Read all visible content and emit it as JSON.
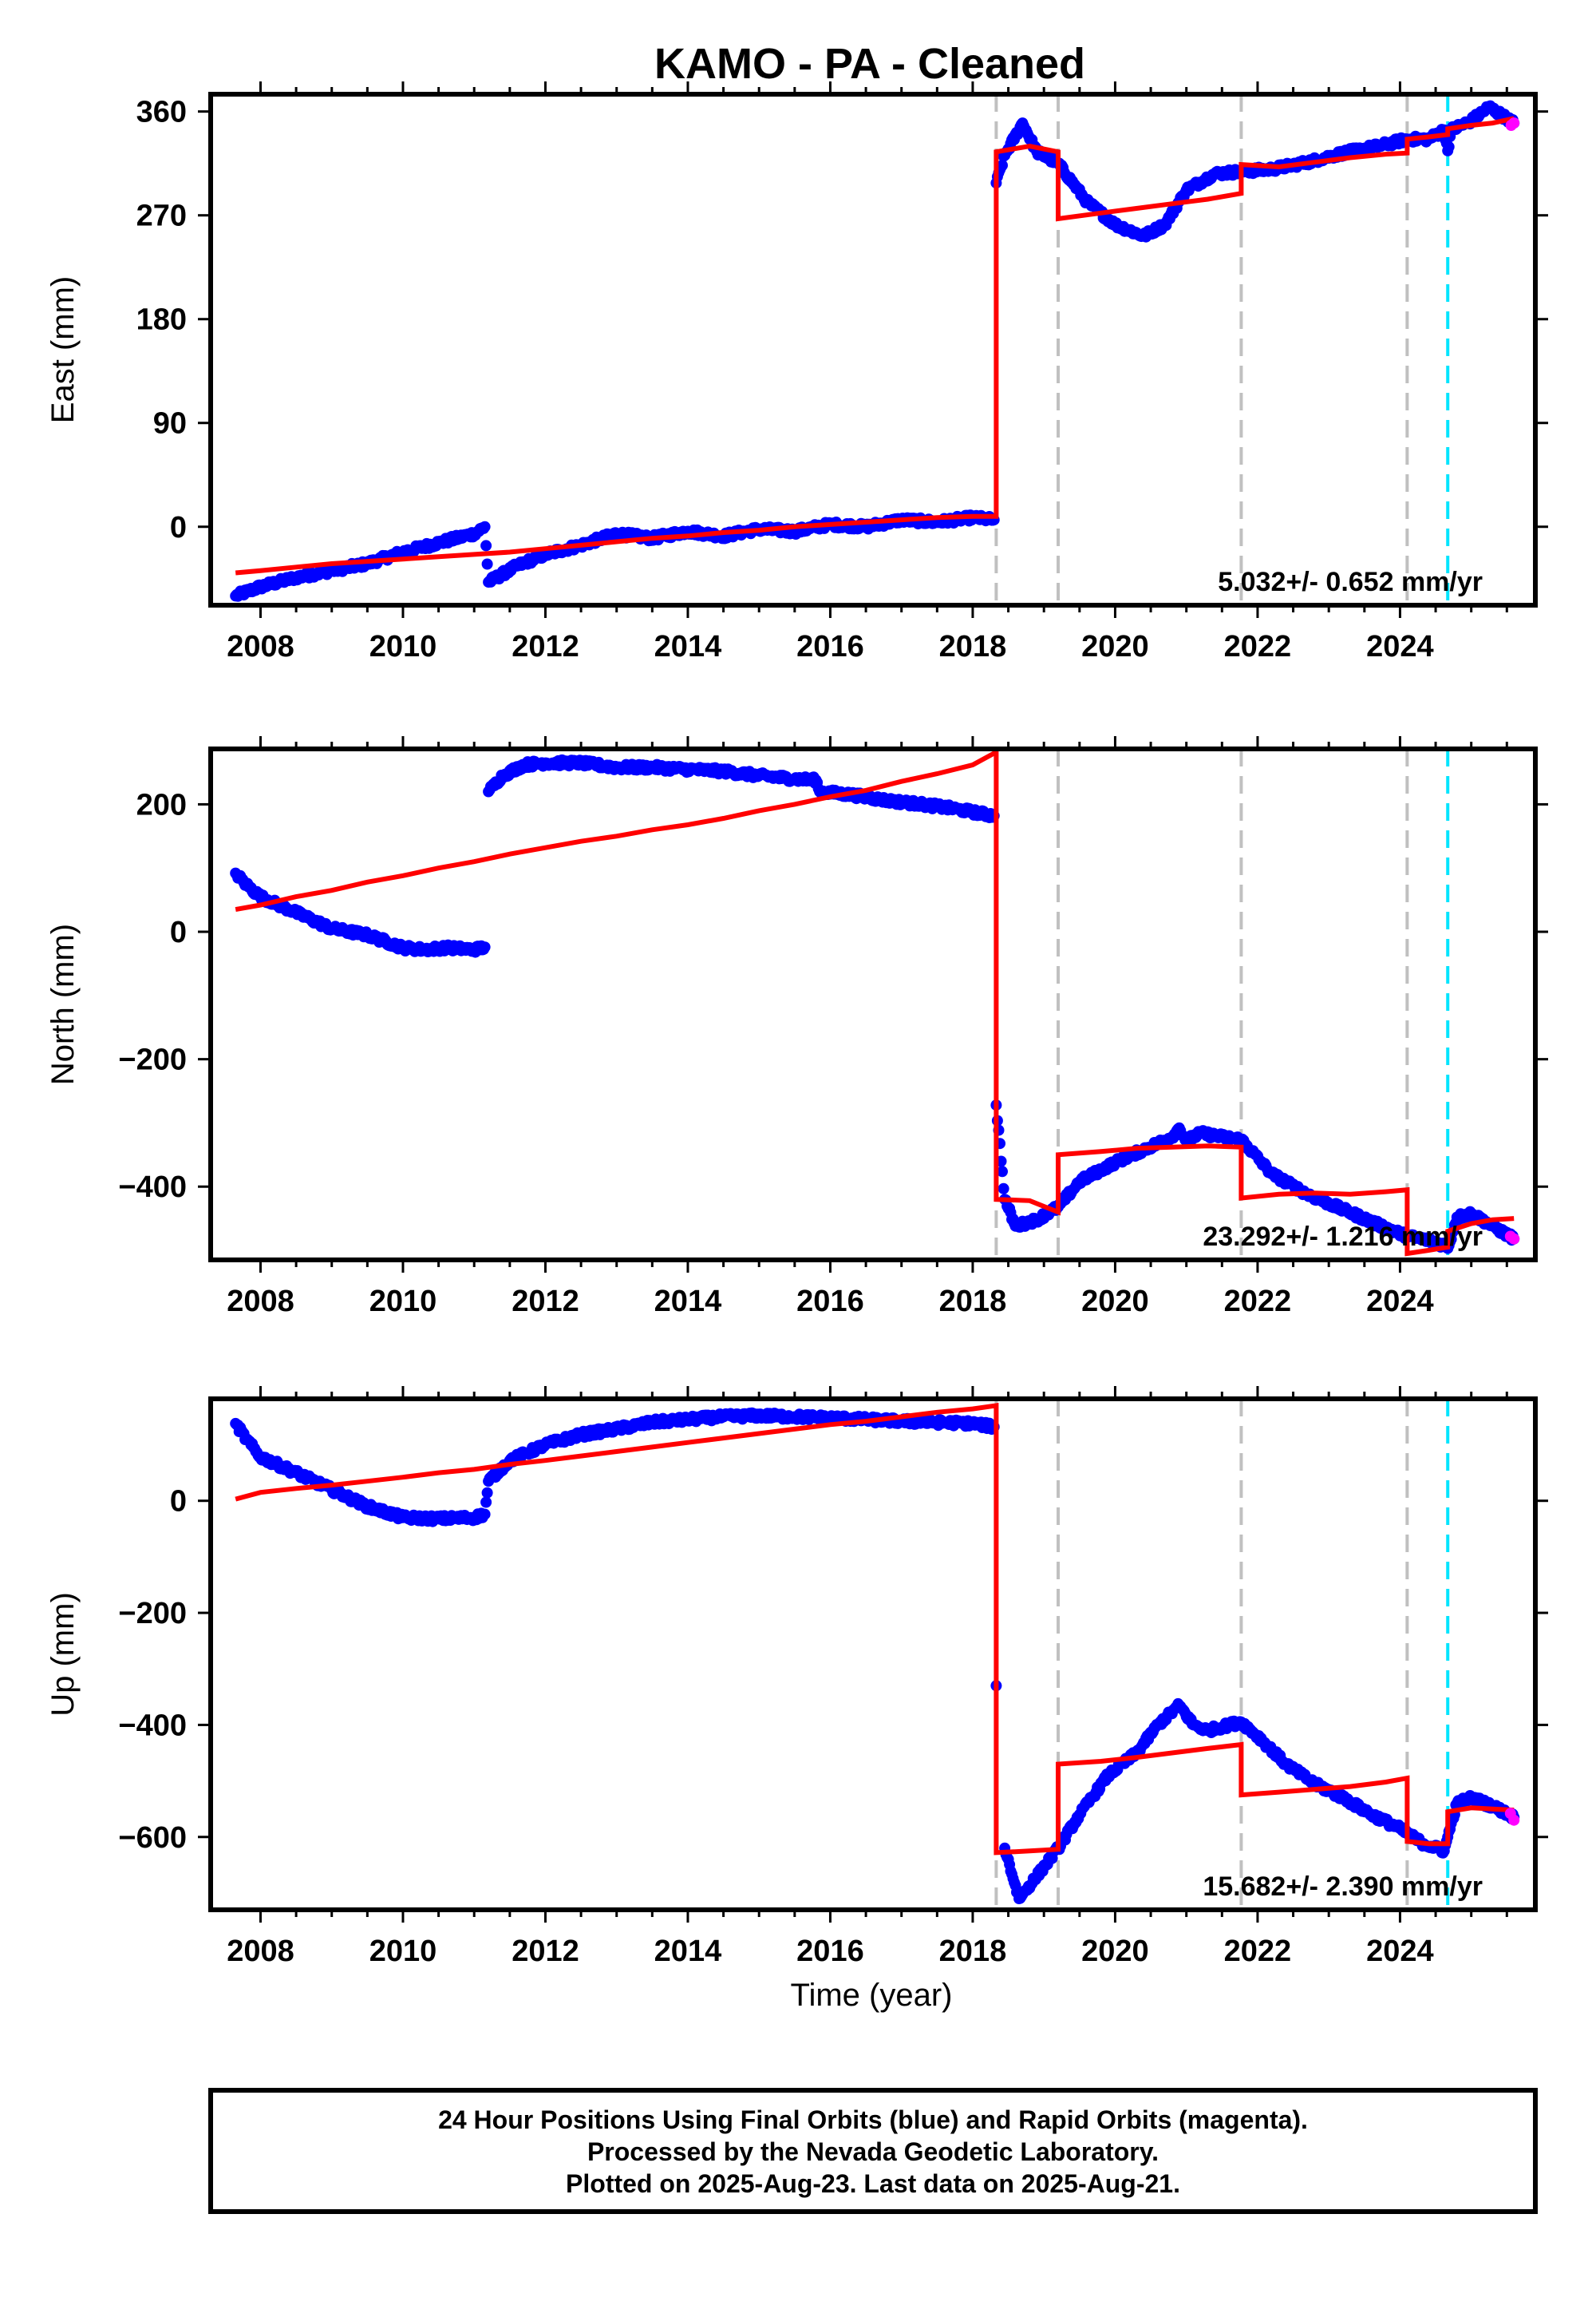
{
  "title": "KAMO  - PA - Cleaned",
  "xlabel": "Time (year)",
  "footer": {
    "line1": "24 Hour Positions Using Final Orbits (blue) and Rapid Orbits (magenta).",
    "line2": "Processed by the Nevada Geodetic Laboratory.",
    "line3": "Plotted on 2025-Aug-23. Last data on 2025-Aug-21."
  },
  "colors": {
    "final_orbits": "#0000ff",
    "rapid_orbits": "#ff00ff",
    "model": "#ff0000",
    "event_line": "#c0c0c0",
    "equipment_line": "#00e5ff"
  },
  "chart_data": [
    {
      "type": "scatter",
      "ylabel": "East (mm)",
      "rate_label": "5.032+/- 0.652 mm/yr",
      "xlim": [
        2007.3,
        2025.9
      ],
      "ylim": [
        -68,
        375
      ],
      "xticks": [
        2008,
        2010,
        2012,
        2014,
        2016,
        2018,
        2020,
        2022,
        2024
      ],
      "yticks": [
        0,
        90,
        180,
        270,
        360
      ],
      "event_lines": [
        2018.33,
        2019.2,
        2021.77,
        2024.1
      ],
      "equipment_lines": [
        2024.67
      ],
      "series": [
        {
          "name": "Final Orbits",
          "color": "#0000ff",
          "x": [
            2007.65,
            2008.0,
            2008.5,
            2009.0,
            2009.5,
            2010.0,
            2010.5,
            2011.0,
            2011.15,
            2011.2,
            2011.6,
            2012.0,
            2012.5,
            2013.0,
            2013.5,
            2014.0,
            2014.5,
            2015.0,
            2015.5,
            2016.0,
            2016.5,
            2017.0,
            2017.5,
            2018.0,
            2018.3,
            2018.33,
            2018.45,
            2018.7,
            2018.9,
            2019.2,
            2019.6,
            2020.0,
            2020.4,
            2020.7,
            2021.0,
            2021.4,
            2021.77,
            2022.2,
            2022.7,
            2023.2,
            2023.7,
            2024.1,
            2024.4,
            2024.62,
            2024.67,
            2024.72,
            2025.0,
            2025.25,
            2025.5,
            2025.6
          ],
          "y": [
            -60,
            -52,
            -44,
            -38,
            -32,
            -22,
            -14,
            -6,
            0,
            -48,
            -34,
            -24,
            -16,
            -6,
            -10,
            -4,
            -8,
            -2,
            -4,
            2,
            0,
            6,
            4,
            8,
            6,
            298,
            322,
            350,
            325,
            315,
            282,
            262,
            252,
            262,
            292,
            306,
            308,
            310,
            316,
            324,
            330,
            336,
            336,
            344,
            326,
            344,
            352,
            364,
            354,
            350
          ]
        },
        {
          "name": "Rapid Orbits",
          "color": "#ff00ff",
          "x": [
            2025.56,
            2025.6
          ],
          "y": [
            348,
            350
          ]
        },
        {
          "name": "Model",
          "color": "#ff0000",
          "x": [
            2007.65,
            2008.0,
            2008.5,
            2009.0,
            2009.5,
            2010.0,
            2010.5,
            2011.0,
            2011.5,
            2012.0,
            2012.5,
            2013.0,
            2013.5,
            2014.0,
            2014.5,
            2015.0,
            2015.5,
            2016.0,
            2016.5,
            2017.0,
            2017.5,
            2018.0,
            2018.33,
            2018.33,
            2018.8,
            2019.2,
            2019.2,
            2019.8,
            2020.3,
            2020.8,
            2021.3,
            2021.77,
            2021.77,
            2022.3,
            2022.8,
            2023.3,
            2023.8,
            2024.1,
            2024.1,
            2024.4,
            2024.67,
            2024.67,
            2025.0,
            2025.3,
            2025.6
          ],
          "y": [
            -40,
            -38,
            -35,
            -32,
            -30,
            -28,
            -26,
            -24,
            -22,
            -19,
            -16,
            -13,
            -10,
            -8,
            -5,
            -3,
            0,
            2,
            4,
            6,
            8,
            9,
            9,
            325,
            330,
            325,
            267,
            272,
            276,
            280,
            284,
            289,
            314,
            312,
            316,
            320,
            323,
            324,
            336,
            338,
            340,
            345,
            348,
            350,
            354
          ]
        }
      ]
    },
    {
      "type": "scatter",
      "ylabel": "North (mm)",
      "rate_label": "23.292+/- 1.216 mm/yr",
      "xlim": [
        2007.3,
        2025.9
      ],
      "ylim": [
        -515,
        287
      ],
      "xticks": [
        2008,
        2010,
        2012,
        2014,
        2016,
        2018,
        2020,
        2022,
        2024
      ],
      "yticks": [
        -400,
        -200,
        0,
        200
      ],
      "event_lines": [
        2018.33,
        2019.2,
        2021.77,
        2024.1
      ],
      "equipment_lines": [
        2024.67
      ],
      "series": [
        {
          "name": "Final Orbits",
          "color": "#0000ff",
          "x": [
            2007.65,
            2007.8,
            2008.0,
            2008.5,
            2009.0,
            2009.5,
            2010.0,
            2010.3,
            2010.6,
            2011.0,
            2011.15,
            2011.2,
            2011.4,
            2011.7,
            2012.0,
            2012.5,
            2013.0,
            2013.5,
            2014.0,
            2014.5,
            2015.0,
            2015.5,
            2015.8,
            2015.85,
            2016.3,
            2016.8,
            2017.3,
            2017.8,
            2018.3,
            2018.33,
            2018.45,
            2018.6,
            2018.9,
            2019.2,
            2019.5,
            2020.0,
            2020.4,
            2020.8,
            2020.9,
            2021.0,
            2021.2,
            2021.5,
            2021.77,
            2022.2,
            2022.7,
            2023.2,
            2023.7,
            2024.1,
            2024.4,
            2024.62,
            2024.67,
            2024.8,
            2025.0,
            2025.3,
            2025.6
          ],
          "y": [
            92,
            74,
            55,
            30,
            5,
            -5,
            -25,
            -28,
            -25,
            -28,
            -24,
            220,
            245,
            262,
            265,
            265,
            258,
            258,
            255,
            252,
            245,
            240,
            238,
            220,
            215,
            206,
            200,
            192,
            182,
            -272,
            -420,
            -462,
            -452,
            -432,
            -392,
            -362,
            -342,
            -322,
            -308,
            -328,
            -316,
            -322,
            -326,
            -380,
            -412,
            -436,
            -460,
            -478,
            -484,
            -492,
            -497,
            -448,
            -442,
            -462,
            -482
          ]
        },
        {
          "name": "Rapid Orbits",
          "color": "#ff00ff",
          "x": [
            2025.55,
            2025.6
          ],
          "y": [
            -478,
            -482
          ]
        },
        {
          "name": "Model",
          "color": "#ff0000",
          "x": [
            2007.65,
            2008.0,
            2008.5,
            2009.0,
            2009.5,
            2010.0,
            2010.5,
            2011.0,
            2011.5,
            2012.0,
            2012.5,
            2013.0,
            2013.5,
            2014.0,
            2014.5,
            2015.0,
            2015.5,
            2016.0,
            2016.5,
            2017.0,
            2017.5,
            2018.0,
            2018.33,
            2018.33,
            2018.8,
            2019.2,
            2019.2,
            2019.8,
            2020.3,
            2020.8,
            2021.3,
            2021.77,
            2021.77,
            2022.3,
            2022.8,
            2023.3,
            2023.8,
            2024.1,
            2024.1,
            2024.4,
            2024.67,
            2024.67,
            2025.0,
            2025.3,
            2025.6
          ],
          "y": [
            35,
            42,
            55,
            65,
            78,
            88,
            100,
            110,
            122,
            132,
            142,
            150,
            160,
            168,
            178,
            190,
            200,
            212,
            222,
            236,
            248,
            262,
            282,
            -420,
            -422,
            -440,
            -350,
            -345,
            -340,
            -338,
            -336,
            -338,
            -418,
            -412,
            -410,
            -412,
            -408,
            -405,
            -505,
            -500,
            -495,
            -470,
            -458,
            -452,
            -450
          ]
        }
      ]
    },
    {
      "type": "scatter",
      "ylabel": "Up (mm)",
      "rate_label": "15.682+/- 2.390 mm/yr",
      "xlim": [
        2007.3,
        2025.9
      ],
      "ylim": [
        -730,
        182
      ],
      "xticks": [
        2008,
        2010,
        2012,
        2014,
        2016,
        2018,
        2020,
        2022,
        2024
      ],
      "yticks": [
        -600,
        -400,
        -200,
        0
      ],
      "event_lines": [
        2018.33,
        2019.2,
        2021.77,
        2024.1
      ],
      "equipment_lines": [
        2024.67
      ],
      "series": [
        {
          "name": "Final Orbits",
          "color": "#0000ff",
          "x": [
            2007.65,
            2007.8,
            2008.0,
            2008.5,
            2009.0,
            2009.5,
            2010.0,
            2010.5,
            2011.0,
            2011.15,
            2011.2,
            2011.5,
            2012.0,
            2012.5,
            2013.0,
            2013.5,
            2014.0,
            2014.5,
            2015.0,
            2015.5,
            2016.0,
            2016.5,
            2017.0,
            2017.5,
            2018.0,
            2018.3,
            2018.33,
            2018.45,
            2018.65,
            2018.9,
            2019.2,
            2019.5,
            2019.9,
            2020.3,
            2020.6,
            2020.9,
            2021.1,
            2021.3,
            2021.6,
            2021.77,
            2022.0,
            2022.4,
            2022.8,
            2023.2,
            2023.6,
            2024.0,
            2024.3,
            2024.62,
            2024.67,
            2024.8,
            2025.0,
            2025.3,
            2025.6
          ],
          "y": [
            138,
            110,
            78,
            50,
            20,
            -10,
            -30,
            -32,
            -30,
            -24,
            35,
            72,
            100,
            118,
            128,
            140,
            145,
            150,
            152,
            150,
            148,
            145,
            142,
            140,
            138,
            132,
            -330,
            -620,
            -710,
            -670,
            -620,
            -560,
            -490,
            -450,
            -400,
            -365,
            -400,
            -410,
            -400,
            -395,
            -420,
            -470,
            -505,
            -530,
            -560,
            -585,
            -610,
            -625,
            -600,
            -540,
            -530,
            -545,
            -565
          ]
        },
        {
          "name": "Rapid Orbits",
          "color": "#ff00ff",
          "x": [
            2025.55,
            2025.6
          ],
          "y": [
            -558,
            -570
          ]
        },
        {
          "name": "Model",
          "color": "#ff0000",
          "x": [
            2007.65,
            2008.0,
            2008.5,
            2009.0,
            2009.5,
            2010.0,
            2010.5,
            2011.0,
            2011.5,
            2012.0,
            2012.5,
            2013.0,
            2013.5,
            2014.0,
            2014.5,
            2015.0,
            2015.5,
            2016.0,
            2016.5,
            2017.0,
            2017.5,
            2018.0,
            2018.33,
            2018.33,
            2018.8,
            2019.2,
            2019.2,
            2019.8,
            2020.3,
            2020.8,
            2021.3,
            2021.77,
            2021.77,
            2022.3,
            2022.8,
            2023.3,
            2023.8,
            2024.1,
            2024.1,
            2024.4,
            2024.67,
            2024.67,
            2025.0,
            2025.3,
            2025.6
          ],
          "y": [
            3,
            15,
            22,
            28,
            35,
            42,
            50,
            56,
            65,
            72,
            80,
            88,
            96,
            104,
            112,
            120,
            128,
            136,
            142,
            150,
            158,
            164,
            170,
            -628,
            -625,
            -622,
            -470,
            -465,
            -458,
            -450,
            -442,
            -435,
            -525,
            -520,
            -515,
            -510,
            -502,
            -495,
            -608,
            -612,
            -612,
            -555,
            -548,
            -550,
            -552
          ]
        }
      ]
    }
  ]
}
